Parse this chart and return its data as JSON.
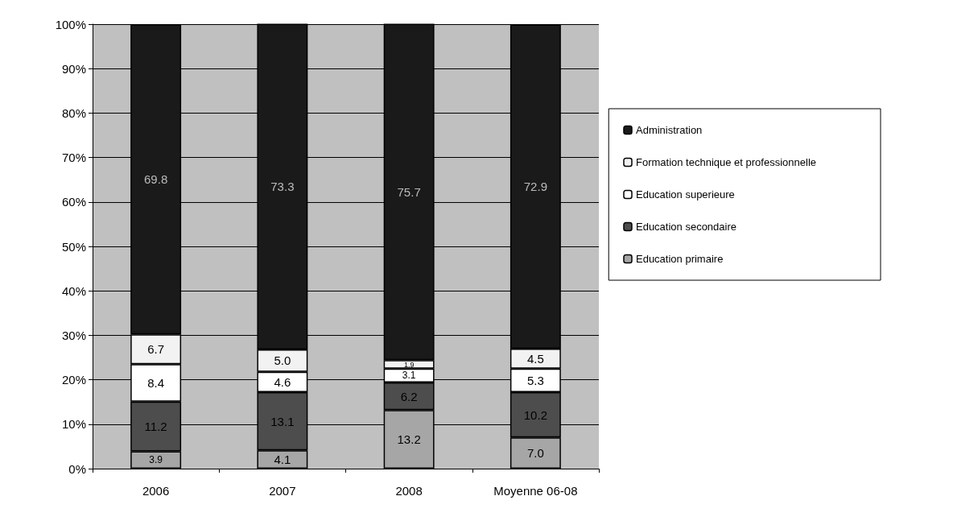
{
  "chart_data": {
    "type": "bar",
    "stacked": true,
    "categories": [
      "2006",
      "2007",
      "2008",
      "Moyenne 06-08"
    ],
    "series": [
      {
        "name": "Education primaire",
        "color": "#a6a6a6",
        "values": [
          3.9,
          4.1,
          13.2,
          7.0
        ],
        "value_labels": [
          "3.9",
          "4.1",
          "13.2",
          "7.0"
        ]
      },
      {
        "name": "Education secondaire",
        "color": "#4d4d4d",
        "values": [
          11.2,
          13.1,
          6.2,
          10.2
        ],
        "value_labels": [
          "11.2",
          "13.1",
          "6.2",
          "10.2"
        ]
      },
      {
        "name": "Education superieure",
        "color": "#ffffff",
        "values": [
          8.4,
          4.6,
          3.1,
          5.3
        ],
        "value_labels": [
          "8.4",
          "4.6",
          "3.1",
          "5.3"
        ]
      },
      {
        "name": "Formation technique et professionnelle",
        "color": "#f2f2f2",
        "values": [
          6.7,
          5.0,
          1.9,
          4.5
        ],
        "value_labels": [
          "6.7",
          "5.0",
          "1.9",
          "4.5"
        ]
      },
      {
        "name": "Administration",
        "color": "#1a1a1a",
        "values": [
          69.8,
          73.3,
          75.7,
          72.9
        ],
        "value_labels": [
          "69.8",
          "73.3",
          "75.7",
          "72.9"
        ]
      }
    ],
    "ylim": [
      0,
      100
    ],
    "yticks": [
      {
        "value": 0,
        "label": "0%"
      },
      {
        "value": 10,
        "label": "10%"
      },
      {
        "value": 20,
        "label": "20%"
      },
      {
        "value": 30,
        "label": "30%"
      },
      {
        "value": 40,
        "label": "40%"
      },
      {
        "value": 50,
        "label": "50%"
      },
      {
        "value": 60,
        "label": "60%"
      },
      {
        "value": 70,
        "label": "70%"
      },
      {
        "value": 80,
        "label": "80%"
      },
      {
        "value": 90,
        "label": "90%"
      },
      {
        "value": 100,
        "label": "100%"
      }
    ],
    "grid": "y",
    "legend": "right"
  }
}
